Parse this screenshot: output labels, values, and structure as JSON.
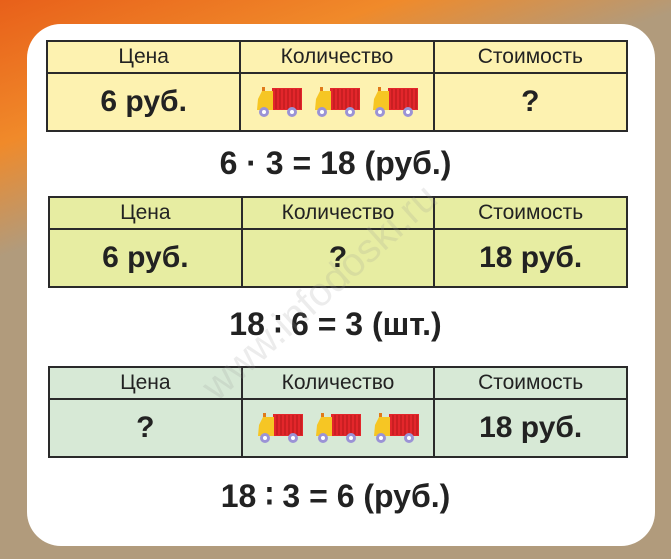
{
  "headers": {
    "price": "Цена",
    "quantity": "Количество",
    "cost": "Стоимость"
  },
  "table1": {
    "price": "6 руб.",
    "quantity_icons": [
      "truck-icon",
      "truck-icon",
      "truck-icon"
    ],
    "cost": "?"
  },
  "equation1": "6 · 3 = 18 (руб.)",
  "table2": {
    "price": "6 руб.",
    "quantity": "?",
    "cost": "18 руб."
  },
  "equation2": "18 ∶ 6 = 3 (шт.)",
  "table3": {
    "price": "?",
    "quantity_icons": [
      "truck-icon",
      "truck-icon",
      "truck-icon"
    ],
    "cost": "18 руб."
  },
  "equation3": "18 ∶ 3 = 6 (руб.)",
  "watermark": "www.infodoski.ru",
  "colors": {
    "table1": "#fdf2b0",
    "table2": "#e7eda2",
    "table3": "#d7e9d6",
    "truck_body": "#e3262b",
    "truck_cab": "#f6c624",
    "wheels": "#9b93d6"
  }
}
